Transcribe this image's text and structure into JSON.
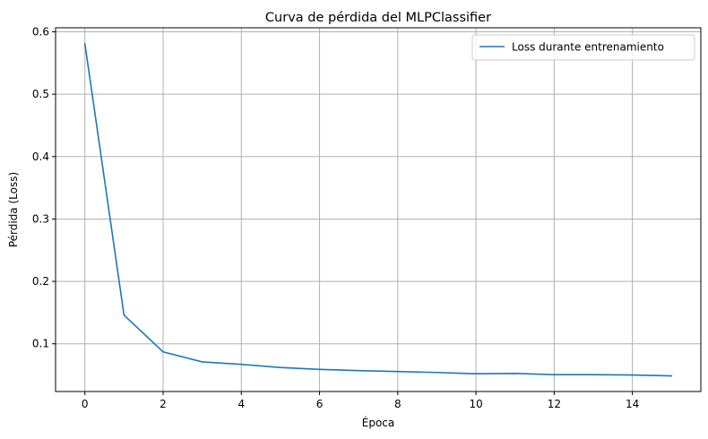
{
  "chart_data": {
    "type": "line",
    "title": "Curva de pérdida del MLPClassifier",
    "xlabel": "Época",
    "ylabel": "Pérdida (Loss)",
    "xlim": [
      -0.75,
      15.75
    ],
    "ylim": [
      0.0235,
      0.6065
    ],
    "xticks": [
      0,
      2,
      4,
      6,
      8,
      10,
      12,
      14
    ],
    "yticks": [
      0.1,
      0.2,
      0.3,
      0.4,
      0.5,
      0.6
    ],
    "xtick_labels": [
      "0",
      "2",
      "4",
      "6",
      "8",
      "10",
      "12",
      "14"
    ],
    "ytick_labels": [
      "0.1",
      "0.2",
      "0.3",
      "0.4",
      "0.5",
      "0.6"
    ],
    "grid": true,
    "legend_position": "top-right",
    "colors": {
      "series": "#1f77b4",
      "grid": "#b0b0b0"
    },
    "series": [
      {
        "name": "Loss durante entrenamiento",
        "x": [
          0,
          1,
          2,
          3,
          4,
          5,
          6,
          7,
          8,
          9,
          10,
          11,
          12,
          13,
          14,
          15
        ],
        "y": [
          0.581,
          0.146,
          0.087,
          0.071,
          0.067,
          0.062,
          0.059,
          0.057,
          0.0555,
          0.054,
          0.052,
          0.0525,
          0.0505,
          0.0505,
          0.05,
          0.0485
        ]
      }
    ]
  }
}
